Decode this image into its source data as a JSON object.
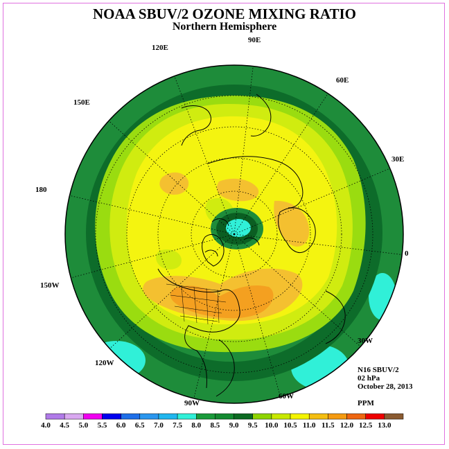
{
  "title": "NOAA SBUV/2 OZONE MIXING RATIO",
  "subtitle": "Northern Hemisphere",
  "longitude_labels": [
    "90E",
    "60E",
    "30E",
    "0",
    "30W",
    "60W",
    "90W",
    "120W",
    "150W",
    "180",
    "150E",
    "120E"
  ],
  "info": {
    "instrument": "N16 SBUV/2",
    "level": "02 hPa",
    "date": "October 28, 2013",
    "units": "PPM"
  },
  "colorbar": {
    "labels": [
      "4.0",
      "4.5",
      "5.0",
      "5.5",
      "6.0",
      "6.5",
      "7.0",
      "7.5",
      "8.0",
      "8.5",
      "9.0",
      "9.5",
      "10.0",
      "10.5",
      "11.0",
      "11.5",
      "12.0",
      "12.5",
      "13.0"
    ],
    "colors": [
      "#b07ae8",
      "#d9a8f0",
      "#f000f0",
      "#0000ee",
      "#1e6fe8",
      "#2a96ee",
      "#20b6ee",
      "#30f0d8",
      "#1a9a3a",
      "#138a30",
      "#0c6a22",
      "#8ed400",
      "#c8e800",
      "#f4f400",
      "#f4be10",
      "#f49a10",
      "#ee6610",
      "#ee0000",
      "#8a5a30"
    ]
  },
  "map_colors": {
    "edge": "#1e8c3a",
    "ring_dark": "#0d6c2a",
    "ring_mid": "#1e8c3a",
    "light_green": "#9adc10",
    "yellow_green": "#d0ec10",
    "yellow": "#f4f410",
    "orange_light": "#f4c030",
    "orange": "#f4a020",
    "cyan": "#30f0d8",
    "vortex_dark": "#0b5e22",
    "vortex_mid": "#1e8c3a",
    "coast": "#000000"
  }
}
